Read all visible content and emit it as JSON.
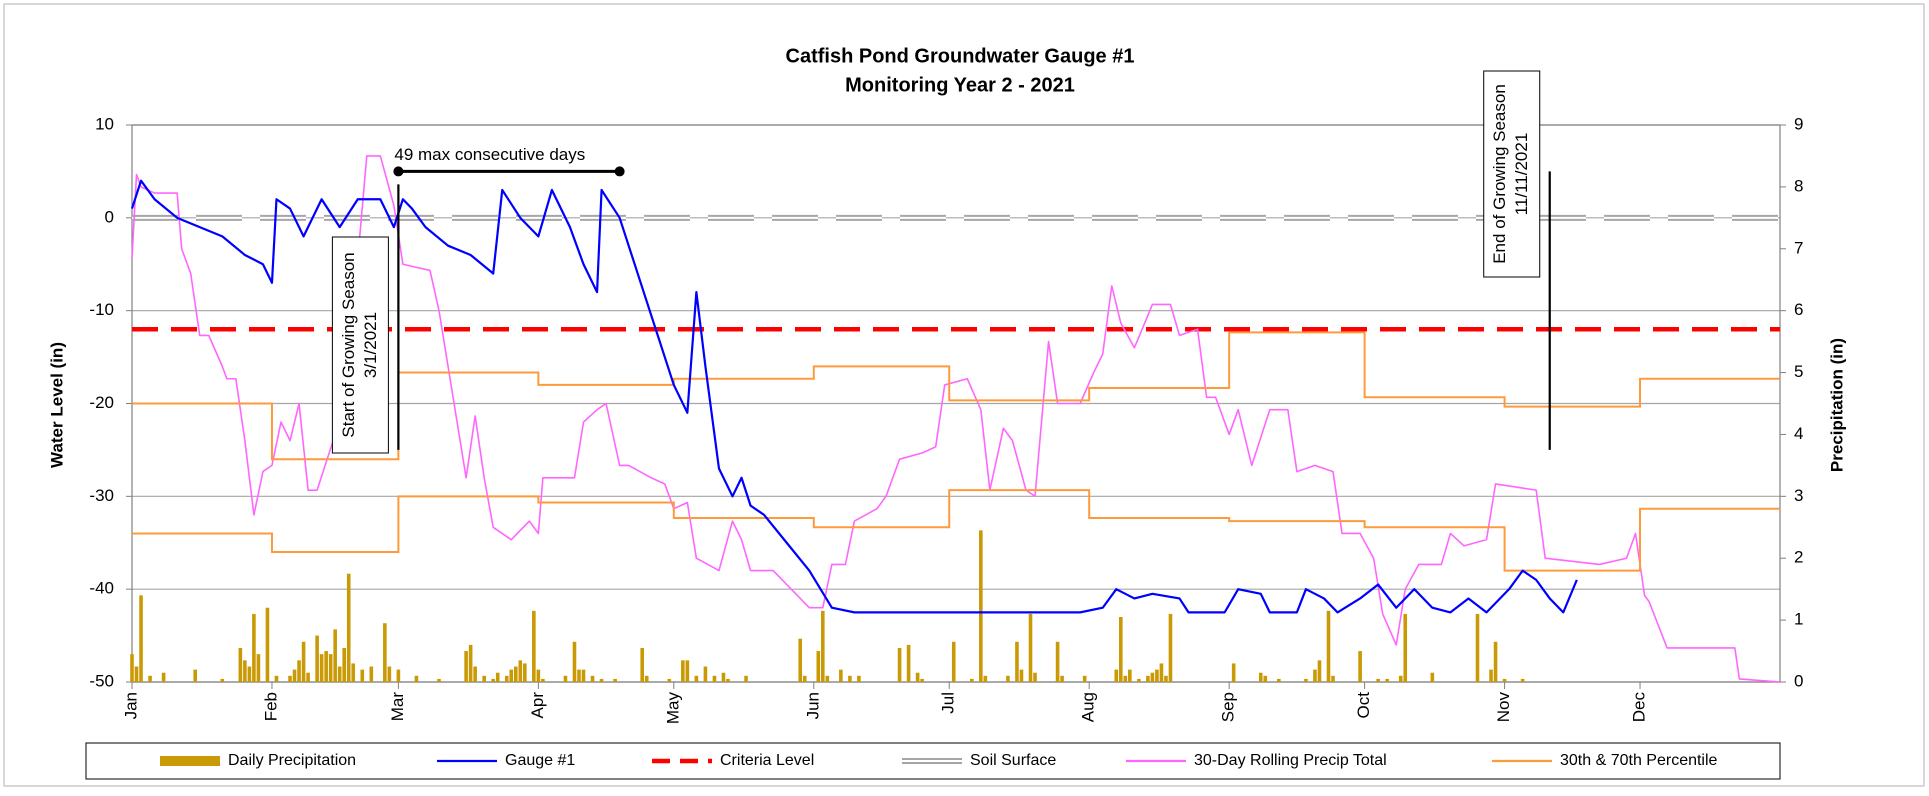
{
  "chart_data": {
    "type": "combo",
    "title": "Catfish Pond Groundwater Gauge #1",
    "subtitle": "Monitoring Year 2 - 2021",
    "y_label": "Water Level (in)",
    "y2_label": "Precipitation (in)",
    "xlim": [
      0,
      365
    ],
    "xticks": [
      {
        "value": 0,
        "label": "Jan"
      },
      {
        "value": 31,
        "label": "Feb"
      },
      {
        "value": 59,
        "label": "Mar"
      },
      {
        "value": 90,
        "label": "Apr"
      },
      {
        "value": 120,
        "label": "May"
      },
      {
        "value": 151,
        "label": "Jun"
      },
      {
        "value": 181,
        "label": "Jul"
      },
      {
        "value": 212,
        "label": "Aug"
      },
      {
        "value": 243,
        "label": "Sep"
      },
      {
        "value": 273,
        "label": "Oct"
      },
      {
        "value": 304,
        "label": "Nov"
      },
      {
        "value": 334,
        "label": "Dec"
      }
    ],
    "ylim": [
      -50,
      10
    ],
    "yticks": [
      -50,
      -40,
      -30,
      -20,
      -10,
      0,
      10
    ],
    "y2lim": [
      0,
      9
    ],
    "y2ticks": [
      0,
      1,
      2,
      3,
      4,
      5,
      6,
      7,
      8,
      9
    ],
    "grid": true,
    "legend": "bottom",
    "series": [
      {
        "name": "Daily Precipitation",
        "kind": "bar",
        "axis": "y2",
        "color": "#c99a06",
        "x": [
          0,
          1,
          2,
          4,
          7,
          14,
          20,
          24,
          25,
          26,
          27,
          28,
          30,
          32,
          35,
          36,
          37,
          38,
          39,
          41,
          42,
          43,
          44,
          45,
          46,
          47,
          48,
          49,
          51,
          53,
          56,
          57,
          59,
          63,
          68,
          74,
          75,
          76,
          78,
          80,
          81,
          83,
          84,
          85,
          86,
          87,
          89,
          90,
          91,
          96,
          98,
          99,
          100,
          102,
          104,
          107,
          113,
          114,
          119,
          122,
          123,
          125,
          127,
          129,
          131,
          132,
          136,
          148,
          149,
          152,
          153,
          154,
          157,
          159,
          161,
          170,
          172,
          174,
          175,
          182,
          186,
          188,
          189,
          194,
          196,
          197,
          199,
          200,
          205,
          206,
          211,
          218,
          219,
          220,
          221,
          223,
          225,
          226,
          227,
          228,
          229,
          230,
          244,
          250,
          251,
          254,
          260,
          262,
          263,
          265,
          266,
          272,
          276,
          278,
          281,
          282,
          288,
          298,
          301,
          302,
          304,
          308
        ],
        "values": [
          0.45,
          0.25,
          1.4,
          0.1,
          0.15,
          0.2,
          0.05,
          0.55,
          0.35,
          0.25,
          1.1,
          0.45,
          1.2,
          0.1,
          0.1,
          0.2,
          0.35,
          0.65,
          0.15,
          0.75,
          0.45,
          0.5,
          0.45,
          0.85,
          0.25,
          0.55,
          1.75,
          0.3,
          0.2,
          0.25,
          0.95,
          0.25,
          0.2,
          0.1,
          0.05,
          0.5,
          0.6,
          0.25,
          0.1,
          0.05,
          0.15,
          0.1,
          0.2,
          0.25,
          0.35,
          0.3,
          1.15,
          0.2,
          0.05,
          0.1,
          0.65,
          0.2,
          0.2,
          0.1,
          0.05,
          0.05,
          0.55,
          0.1,
          0.05,
          0.35,
          0.35,
          0.1,
          0.25,
          0.1,
          0.15,
          0.05,
          0.1,
          0.7,
          0.1,
          0.5,
          1.15,
          0.1,
          0.2,
          0.1,
          0.1,
          0.55,
          0.6,
          0.15,
          0.05,
          0.65,
          0.05,
          2.45,
          0.1,
          0.1,
          0.65,
          0.2,
          1.1,
          0.15,
          0.65,
          0.1,
          0.1,
          0.2,
          1.05,
          0.1,
          0.2,
          0.05,
          0.1,
          0.15,
          0.2,
          0.3,
          0.1,
          1.1,
          0.3,
          0.15,
          0.1,
          0.05,
          0.05,
          0.2,
          0.35,
          1.15,
          0.1,
          0.5,
          0.05,
          0.05,
          0.1,
          1.1,
          0.15,
          1.1,
          0.2,
          0.65,
          0.05,
          0.05
        ]
      },
      {
        "name": "Gauge #1",
        "kind": "line",
        "axis": "y",
        "color": "#0000ff",
        "x": [
          0,
          2,
          5,
          10,
          15,
          20,
          25,
          29,
          31,
          32,
          35,
          38,
          42,
          46,
          50,
          55,
          58,
          60,
          62,
          65,
          70,
          75,
          80,
          82,
          86,
          90,
          93,
          97,
          100,
          103,
          104,
          108,
          112,
          116,
          120,
          123,
          125,
          127,
          130,
          133,
          135,
          137,
          140,
          145,
          150,
          155,
          160,
          170,
          180,
          190,
          200,
          210,
          215,
          218,
          222,
          226,
          232,
          234,
          242,
          245,
          250,
          252,
          258,
          260,
          264,
          267,
          272,
          276,
          280,
          284,
          288,
          292,
          296,
          300,
          305,
          308,
          311,
          314,
          317,
          320
        ],
        "values": [
          1,
          4,
          2,
          0,
          -1,
          -2,
          -4,
          -5,
          -7,
          2,
          1,
          -2,
          2,
          -1,
          2,
          2,
          -1,
          2,
          1,
          -1,
          -3,
          -4,
          -6,
          3,
          0,
          -2,
          3,
          -1,
          -5,
          -8,
          3,
          0,
          -6,
          -12,
          -18,
          -21,
          -8,
          -16,
          -27,
          -30,
          -28,
          -31,
          -32,
          -35,
          -38,
          -42,
          -42.5,
          -42.5,
          -42.5,
          -42.5,
          -42.5,
          -42.5,
          -42,
          -40,
          -41,
          -40.5,
          -41,
          -42.5,
          -42.5,
          -40,
          -40.5,
          -42.5,
          -42.5,
          -40,
          -41,
          -42.5,
          -41,
          -39.5,
          -42,
          -40,
          -42,
          -42.5,
          -41,
          -42.5,
          -40,
          -38,
          -39,
          -41,
          -42.5,
          -39
        ]
      },
      {
        "name": "Criteria Level",
        "kind": "line",
        "style": "dashed",
        "axis": "y",
        "color": "#ff0000",
        "x": [
          0,
          365
        ],
        "values": [
          -12,
          -12
        ]
      },
      {
        "name": "Soil Surface",
        "kind": "line",
        "style": "double",
        "axis": "y",
        "color": "#a6a6a6",
        "x": [
          0,
          365
        ],
        "values": [
          0,
          0
        ]
      },
      {
        "name": "30-Day Rolling Precip Total",
        "kind": "line",
        "axis": "y2",
        "color": "#ff66ff",
        "x": [
          0,
          1,
          2,
          5,
          10,
          11,
          13,
          15,
          17,
          20,
          21,
          23,
          25,
          27,
          29,
          31,
          33,
          35,
          37,
          39,
          41,
          45,
          47,
          49,
          52,
          55,
          58,
          60,
          66,
          68,
          70,
          74,
          76,
          78,
          80,
          84,
          88,
          90,
          91,
          98,
          100,
          103,
          105,
          108,
          110,
          115,
          118,
          120,
          123,
          125,
          130,
          133,
          135,
          137,
          142,
          150,
          153,
          155,
          158,
          160,
          165,
          167,
          170,
          175,
          178,
          180,
          185,
          188,
          190,
          193,
          195,
          198,
          200,
          203,
          205,
          210,
          213,
          215,
          217,
          219,
          222,
          226,
          230,
          232,
          236,
          238,
          240,
          243,
          245,
          248,
          252,
          256,
          258,
          262,
          266,
          268,
          272,
          275,
          277,
          280,
          282,
          285,
          290,
          292,
          295,
          300,
          302,
          311,
          313,
          325,
          331,
          333,
          335,
          336,
          340,
          355,
          356,
          365
        ],
        "values": [
          6.85,
          8.2,
          8.0,
          7.9,
          7.9,
          7.0,
          6.6,
          5.6,
          5.6,
          5.1,
          4.9,
          4.9,
          3.9,
          2.7,
          3.4,
          3.5,
          4.2,
          3.9,
          4.5,
          3.1,
          3.1,
          4.0,
          4.9,
          6.0,
          8.5,
          8.5,
          7.7,
          6.75,
          6.65,
          6.0,
          5.1,
          3.3,
          4.3,
          3.3,
          2.5,
          2.3,
          2.6,
          2.4,
          3.3,
          3.3,
          4.2,
          4.4,
          4.5,
          3.5,
          3.5,
          3.3,
          3.2,
          2.8,
          2.9,
          2.0,
          1.8,
          2.6,
          2.3,
          1.8,
          1.8,
          1.2,
          1.2,
          1.9,
          1.9,
          2.6,
          2.8,
          3.0,
          3.6,
          3.7,
          3.8,
          4.8,
          4.9,
          4.4,
          3.1,
          4.1,
          3.9,
          3.1,
          3.0,
          5.5,
          4.5,
          4.5,
          5.0,
          5.3,
          6.4,
          5.8,
          5.4,
          6.1,
          6.1,
          5.6,
          5.7,
          4.6,
          4.6,
          4.0,
          4.4,
          3.5,
          4.4,
          4.4,
          3.4,
          3.5,
          3.4,
          2.4,
          2.4,
          2.0,
          1.1,
          0.6,
          1.5,
          1.9,
          1.9,
          2.4,
          2.2,
          2.3,
          3.2,
          3.1,
          2.0,
          1.9,
          2.0,
          2.4,
          1.4,
          1.3,
          0.55,
          0.55,
          0.05,
          0
        ]
      },
      {
        "name": "30th & 70th Percentile",
        "kind": "step",
        "axis": "y2",
        "color": "#ff9a3c",
        "x": [
          0,
          31,
          59,
          90,
          120,
          151,
          181,
          212,
          243,
          273,
          304,
          334
        ],
        "low": [
          2.4,
          2.1,
          3.0,
          2.9,
          2.65,
          2.5,
          3.1,
          2.65,
          2.6,
          2.5,
          1.8,
          2.8
        ],
        "high": [
          4.5,
          3.6,
          5.0,
          4.8,
          4.9,
          5.1,
          4.55,
          4.75,
          5.65,
          4.6,
          4.45,
          4.9
        ]
      }
    ],
    "annotations": [
      {
        "text": "49 max consecutive days",
        "x": [
          59,
          108
        ],
        "y": 5
      },
      {
        "text": [
          "Start of Growing Season",
          "3/1/2021"
        ],
        "x": 59,
        "y": [
          -25,
          3.6
        ]
      },
      {
        "text": [
          "End of Growing Season",
          "11/11/2021"
        ],
        "x": 314,
        "y": [
          -25,
          5
        ]
      }
    ]
  }
}
